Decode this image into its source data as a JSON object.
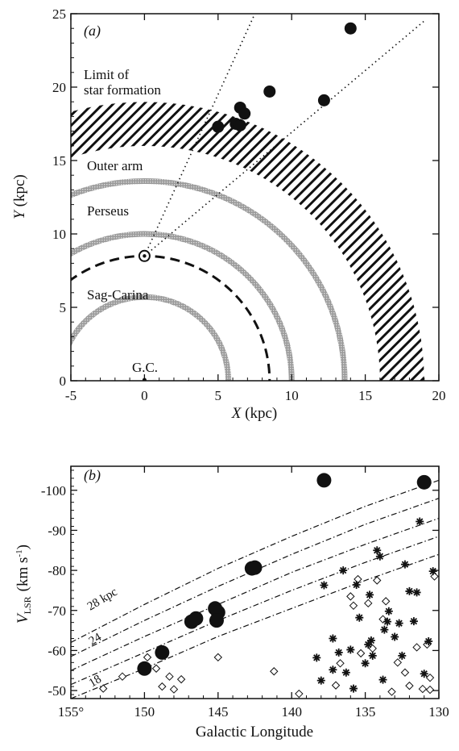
{
  "chart_data": [
    {
      "type": "scatter",
      "panel_label": "(a)",
      "xlabel": "X (kpc)",
      "ylabel": "Y (kpc)",
      "xlim": [
        -5,
        20
      ],
      "ylim": [
        0,
        25
      ],
      "xticks": [
        -5,
        0,
        5,
        10,
        15,
        20
      ],
      "yticks": [
        0,
        5,
        10,
        15,
        20,
        25
      ],
      "annotations": {
        "limit_line1": "Limit of",
        "limit_line2": "star formation",
        "outer_arm": "Outer arm",
        "perseus": "Perseus",
        "sag_carina": "Sag-Carina",
        "gc": "G.C."
      },
      "sun": [
        0,
        8.5
      ],
      "arms": [
        {
          "name": "Sag-Carina",
          "radius": 5.7
        },
        {
          "name": "Perseus",
          "radius": 10.0
        },
        {
          "name": "Outer arm",
          "radius": 13.6
        }
      ],
      "solar_circle_radius": 8.5,
      "star_formation_band": {
        "inner_radius": 16.0,
        "outer_radius": 19.0
      },
      "sightlines": [
        {
          "to": [
            7.5,
            25
          ]
        },
        {
          "to": [
            19,
            24.5
          ]
        }
      ],
      "points": [
        {
          "x": 14.0,
          "y": 24.0
        },
        {
          "x": 8.5,
          "y": 19.7
        },
        {
          "x": 12.2,
          "y": 19.1
        },
        {
          "x": 6.5,
          "y": 18.6
        },
        {
          "x": 6.8,
          "y": 18.2
        },
        {
          "x": 5.0,
          "y": 17.3
        },
        {
          "x": 6.2,
          "y": 17.5
        },
        {
          "x": 6.5,
          "y": 17.4
        }
      ]
    },
    {
      "type": "scatter",
      "panel_label": "(b)",
      "xlabel": "Galactic Longitude",
      "ylabel": "V_LSR (km s⁻¹)",
      "ylabel_main": "V",
      "ylabel_sub": "LSR",
      "ylabel_unit": "(km s",
      "ylabel_sup": "-1",
      "ylabel_close": ")",
      "xlim": [
        155,
        130
      ],
      "ylim": [
        -48,
        -106
      ],
      "xticks": [
        155,
        150,
        145,
        140,
        135,
        130
      ],
      "xtick_labels": [
        "155°",
        "150",
        "145",
        "140",
        "135",
        "130"
      ],
      "yticks": [
        -50,
        -60,
        -70,
        -80,
        -90,
        -100
      ],
      "curve_labels": {
        "c28": "28 kpc",
        "c24": "24",
        "c18": "18"
      },
      "galactocentric_curves": [
        {
          "label": "28",
          "points": [
            [
              155,
              -62
            ],
            [
              150,
              -71.5
            ],
            [
              145,
              -80.5
            ],
            [
              140,
              -88.5
            ],
            [
              135,
              -96
            ],
            [
              130,
              -102.5
            ]
          ]
        },
        {
          "label": "",
          "points": [
            [
              155,
              -58.5
            ],
            [
              150,
              -67.5
            ],
            [
              145,
              -76
            ],
            [
              140,
              -84
            ],
            [
              135,
              -91.5
            ],
            [
              130,
              -98
            ]
          ]
        },
        {
          "label": "24",
          "points": [
            [
              155,
              -55
            ],
            [
              150,
              -63.5
            ],
            [
              145,
              -71.5
            ],
            [
              140,
              -79.5
            ],
            [
              135,
              -86.5
            ],
            [
              130,
              -93
            ]
          ]
        },
        {
          "label": "",
          "points": [
            [
              155,
              -51.5
            ],
            [
              150,
              -59.5
            ],
            [
              145,
              -67.5
            ],
            [
              140,
              -75
            ],
            [
              135,
              -82
            ],
            [
              130,
              -88.5
            ]
          ]
        },
        {
          "label": "18",
          "points": [
            [
              155,
              -48
            ],
            [
              150,
              -55.5
            ],
            [
              145,
              -63.5
            ],
            [
              140,
              -70.5
            ],
            [
              135,
              -77.5
            ],
            [
              130,
              -84
            ]
          ]
        }
      ],
      "large_points": [
        {
          "x": 150.0,
          "y": -55.5
        },
        {
          "x": 148.8,
          "y": -59.5
        },
        {
          "x": 146.8,
          "y": -67.2
        },
        {
          "x": 146.5,
          "y": -68
        },
        {
          "x": 145.2,
          "y": -70.5
        },
        {
          "x": 145.0,
          "y": -69.5
        },
        {
          "x": 145.1,
          "y": -67.5
        },
        {
          "x": 142.7,
          "y": -80.5
        },
        {
          "x": 142.5,
          "y": -80.7
        },
        {
          "x": 137.8,
          "y": -102.5
        },
        {
          "x": 131.0,
          "y": -102.0
        }
      ],
      "diamonds": [
        [
          152.8,
          -50.5
        ],
        [
          151.5,
          -53.5
        ],
        [
          149.8,
          -58.3
        ],
        [
          149.2,
          -55.5
        ],
        [
          148.8,
          -51
        ],
        [
          148.3,
          -53.5
        ],
        [
          148.0,
          -50.3
        ],
        [
          147.5,
          -52.8
        ],
        [
          145.0,
          -58.3
        ],
        [
          141.2,
          -54.8
        ],
        [
          139.5,
          -49.2
        ],
        [
          137.0,
          -51.3
        ],
        [
          136.7,
          -56.8
        ],
        [
          136.0,
          -73.5
        ],
        [
          135.8,
          -71.2
        ],
        [
          135.5,
          -77.8
        ],
        [
          135.3,
          -59.3
        ],
        [
          134.8,
          -71.8
        ],
        [
          134.5,
          -60.5
        ],
        [
          134.2,
          -77.5
        ],
        [
          133.6,
          -72.3
        ],
        [
          133.8,
          -67.8
        ],
        [
          133.2,
          -49.7
        ],
        [
          132.8,
          -57
        ],
        [
          132.3,
          -54.5
        ],
        [
          132.0,
          -51.2
        ],
        [
          131.5,
          -60.8
        ],
        [
          130.8,
          -61.5
        ],
        [
          130.6,
          -53.2
        ],
        [
          130.3,
          -78.5
        ],
        [
          131.1,
          -50.4
        ],
        [
          130.6,
          -50.2
        ]
      ],
      "asterisks": [
        [
          138.3,
          -58.2
        ],
        [
          138.0,
          -52.5
        ],
        [
          137.8,
          -76.3
        ],
        [
          137.2,
          -55.2
        ],
        [
          137.2,
          -63
        ],
        [
          136.8,
          -59.5
        ],
        [
          136.5,
          -80
        ],
        [
          136.3,
          -54.5
        ],
        [
          136.0,
          -60.2
        ],
        [
          135.8,
          -50.5
        ],
        [
          135.6,
          -76.4
        ],
        [
          135.4,
          -68.2
        ],
        [
          135.0,
          -56.8
        ],
        [
          134.8,
          -61.5
        ],
        [
          134.7,
          -73.9
        ],
        [
          134.6,
          -62.5
        ],
        [
          134.5,
          -58.7
        ],
        [
          134.2,
          -85
        ],
        [
          134.0,
          -83.5
        ],
        [
          133.8,
          -52.7
        ],
        [
          133.7,
          -65.2
        ],
        [
          133.5,
          -67.2
        ],
        [
          133.4,
          -69.8
        ],
        [
          133.0,
          -63.4
        ],
        [
          132.7,
          -66.8
        ],
        [
          132.5,
          -58.7
        ],
        [
          132.3,
          -81.5
        ],
        [
          132.0,
          -74.8
        ],
        [
          131.7,
          -67.3
        ],
        [
          131.3,
          -92.2
        ],
        [
          131.0,
          -54.2
        ],
        [
          130.7,
          -62.3
        ],
        [
          130.4,
          -79.8
        ],
        [
          131.5,
          -74.5
        ]
      ]
    }
  ]
}
